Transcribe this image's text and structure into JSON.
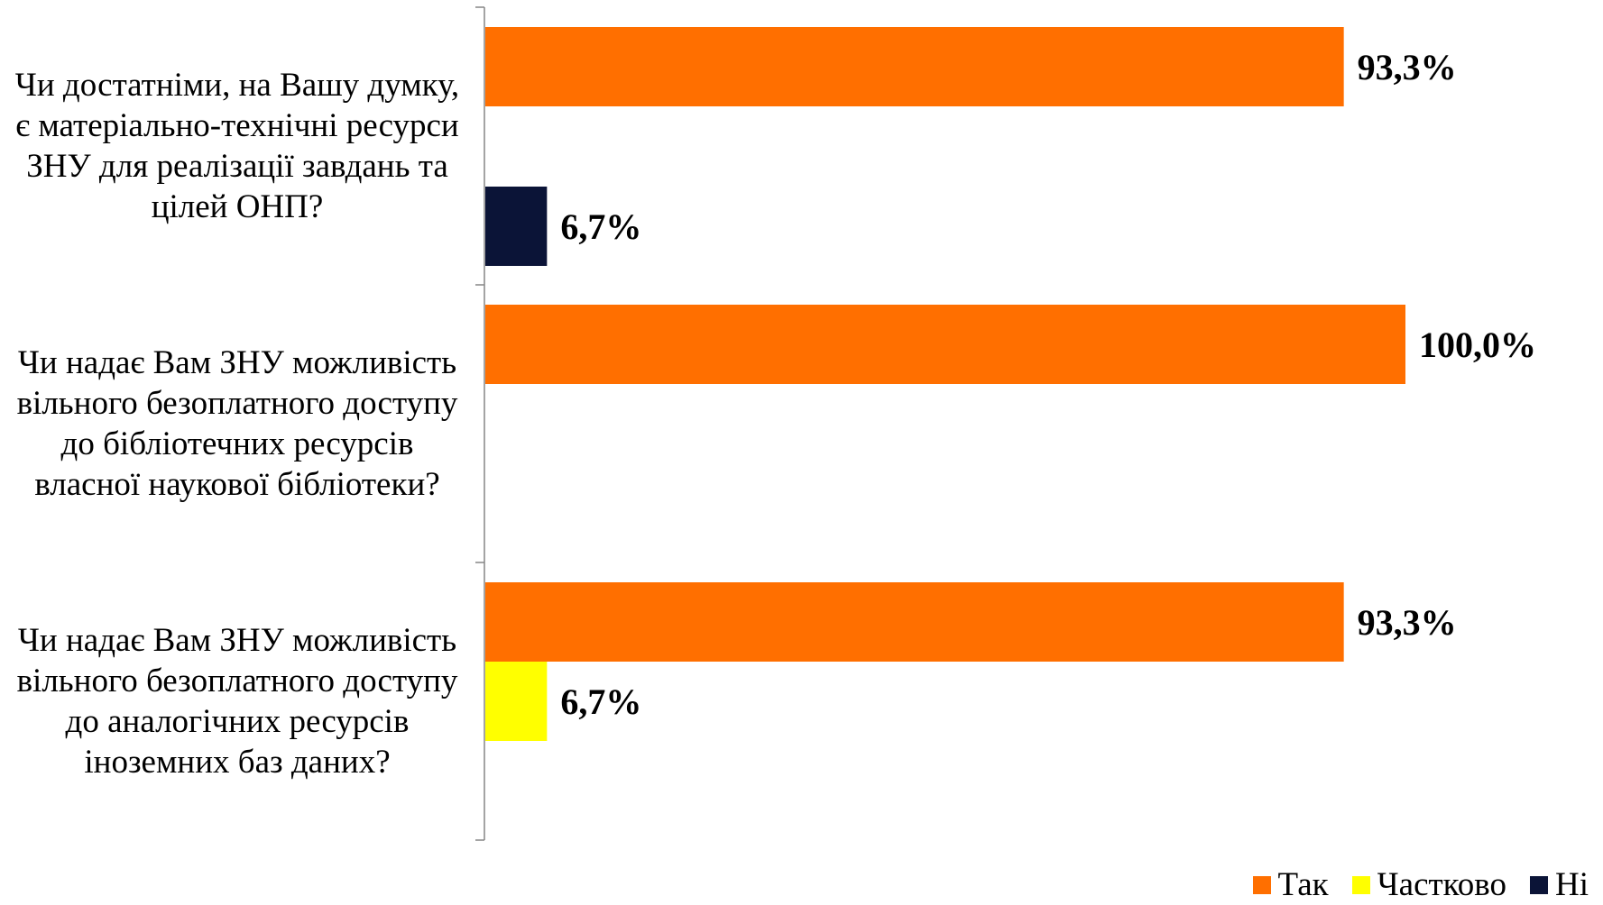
{
  "chart_data": {
    "type": "bar",
    "orientation": "horizontal",
    "categories": [
      "Чи достатніми, на Вашу думку,\nє матеріально-технічні ресурси\nЗНУ для реалізації завдань та\nцілей ОНП?",
      "Чи надає Вам ЗНУ можливість\nвільного безоплатного доступу\nдо бібліотечних ресурсів\nвласної наукової бібліотеки?",
      "Чи надає Вам ЗНУ можливість\nвільного безоплатного доступу\nдо аналогічних ресурсів\nіноземних баз даних?"
    ],
    "series": [
      {
        "name": "Так",
        "color": "#FF6F00",
        "values": [
          93.3,
          100.0,
          93.3
        ],
        "labels": [
          "93,3%",
          "100,0%",
          "93,3%"
        ]
      },
      {
        "name": "Частково",
        "color": "#FFFF00",
        "values": [
          0,
          0,
          6.7
        ],
        "labels": [
          "",
          "",
          "6,7%"
        ]
      },
      {
        "name": "Ні",
        "color": "#0B1437",
        "values": [
          6.7,
          0,
          0
        ],
        "labels": [
          "6,7%",
          "",
          ""
        ]
      }
    ],
    "xlim": [
      0,
      100
    ],
    "grid": false,
    "legend": "bottom-right",
    "title": "",
    "xlabel": "",
    "ylabel": ""
  }
}
